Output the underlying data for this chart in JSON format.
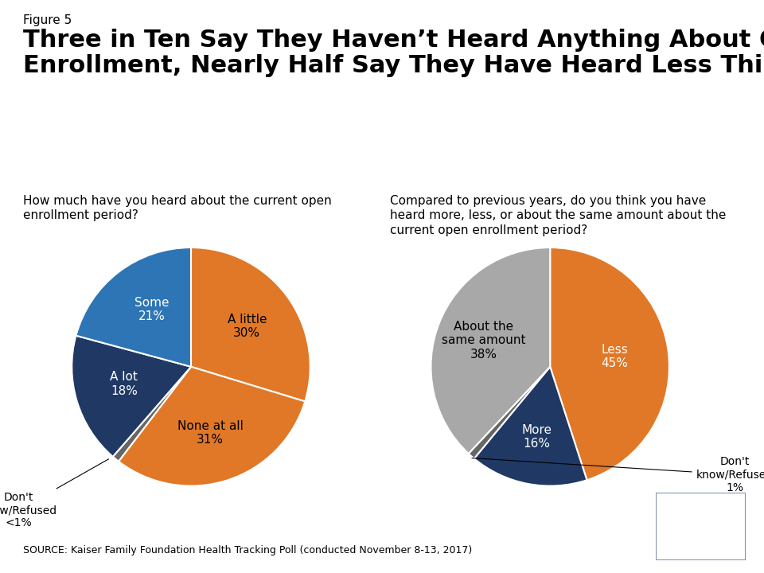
{
  "figure_label": "Figure 5",
  "title": "Three in Ten Say They Haven’t Heard Anything About Open\nEnrollment, Nearly Half Say They Have Heard Less This Year",
  "subtitle_left": "How much have you heard about the current open\nenrollment period?",
  "subtitle_right": "Compared to previous years, do you think you have\nheard more, less, or about the same amount about the\ncurrent open enrollment period?",
  "source": "SOURCE: Kaiser Family Foundation Health Tracking Poll (conducted November 8-13, 2017)",
  "pie1_values": [
    30,
    31,
    1,
    18,
    21
  ],
  "pie1_colors": [
    "#E07828",
    "#E07828",
    "#666666",
    "#1F3864",
    "#2E75B6"
  ],
  "pie1_startangle": 90,
  "pie2_values": [
    45,
    16,
    1,
    38
  ],
  "pie2_colors": [
    "#E07828",
    "#1F3864",
    "#666666",
    "#A8A8A8"
  ],
  "pie2_startangle": 90,
  "background_color": "#FFFFFF",
  "title_fontsize": 22,
  "label_fontsize": 11,
  "subtitle_fontsize": 11,
  "source_fontsize": 9,
  "figure_label_fontsize": 11,
  "kff_logo_color": "#1F3864"
}
